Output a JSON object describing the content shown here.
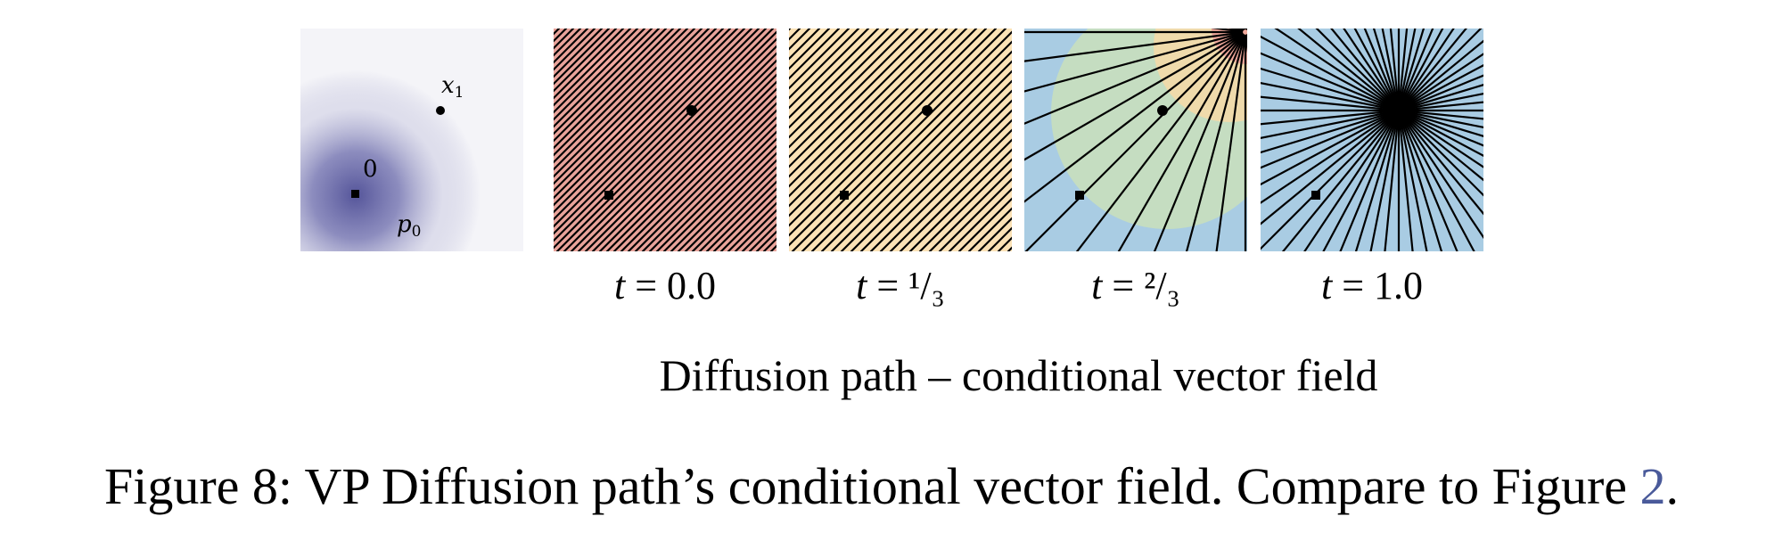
{
  "prior_panel": {
    "point_x1_label": "x",
    "point_x1_sub": "1",
    "origin_label": "0",
    "density_label": "p",
    "density_sub": "0"
  },
  "panels": [
    {
      "t_var": "t",
      "eq": " = ",
      "t_value": "0.0",
      "bg_color": "#e9a39a"
    },
    {
      "t_var": "t",
      "eq": " = ",
      "t_value": "¹/₃",
      "bg_color": "#fbe2b6"
    },
    {
      "t_var": "t",
      "eq": " = ",
      "t_value": "²/₃",
      "bg_color": "#a9cce3"
    },
    {
      "t_var": "t",
      "eq": " = ",
      "t_value": "1.0",
      "bg_color": "#a9cce3"
    }
  ],
  "subtitle": "Diffusion path – conditional vector field",
  "caption": {
    "prefix": "Figure 8: VP Diffusion path’s conditional vector field. Compare to Figure ",
    "ref": "2",
    "suffix": "."
  },
  "colors": {
    "prior_density": "#5a5aa0",
    "field_lines": "#000000",
    "reference_link": "#4a5a9a"
  }
}
